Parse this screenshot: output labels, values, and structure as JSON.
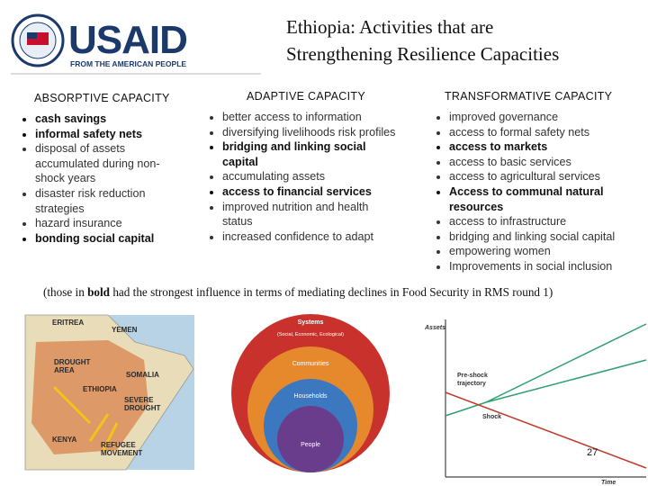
{
  "logo": {
    "name": "USAID",
    "tagline": "FROM THE AMERICAN PEOPLE"
  },
  "title": [
    "Ethiopia:  Activities that are",
    "Strengthening Resilience Capacities"
  ],
  "columns": [
    {
      "heading": "ABSORPTIVE CAPACITY",
      "items": [
        {
          "text": "cash savings",
          "bold": true
        },
        {
          "text": "informal safety nets",
          "bold": true
        },
        {
          "text": "disposal of assets accumulated during non-shock years",
          "bold": false
        },
        {
          "text": "disaster risk reduction strategies",
          "bold": false
        },
        {
          "text": "hazard insurance",
          "bold": false
        },
        {
          "text": "bonding social capital",
          "bold": true
        }
      ]
    },
    {
      "heading": "ADAPTIVE CAPACITY",
      "items": [
        {
          "text": "better access to information",
          "bold": false
        },
        {
          "text": "diversifying livelihoods risk profiles",
          "bold": false
        },
        {
          "text": "bridging and linking social capital",
          "bold": true
        },
        {
          "text": "accumulating assets",
          "bold": false
        },
        {
          "text": "access to financial services",
          "bold": true
        },
        {
          "text": "improved nutrition and health status",
          "bold": false
        },
        {
          "text": "increased confidence to adapt",
          "bold": false
        }
      ]
    },
    {
      "heading": "TRANSFORMATIVE CAPACITY",
      "items": [
        {
          "text": "improved governance",
          "bold": false
        },
        {
          "text": "access to formal safety nets",
          "bold": false
        },
        {
          "text": "access to markets",
          "bold": true
        },
        {
          "text": "access to basic services",
          "bold": false
        },
        {
          "text": "access to agricultural services",
          "bold": false
        },
        {
          "text": "Access to communal natural resources",
          "bold": true
        },
        {
          "text": "access to infrastructure",
          "bold": false
        },
        {
          "text": "bridging and linking social capital",
          "bold": false
        },
        {
          "text": "empowering women",
          "bold": false
        },
        {
          "text": "Improvements in social inclusion",
          "bold": false
        }
      ]
    }
  ],
  "note": [
    "(those in ",
    "bold",
    " had the strongest influence in terms of mediating declines in Food Security in RMS round 1)"
  ],
  "map": {
    "labels": [
      "ERITREA",
      "YEMEN",
      "DROUGHT AREA",
      "SOMALIA",
      "ETHIOPIA",
      "SEVERE DROUGHT",
      "KENYA",
      "REFUGEE MOVEMENT"
    ]
  },
  "diagram": {
    "levels": [
      "Systems",
      "Communities",
      "Households",
      "People"
    ],
    "systems_detail": "(Social, Economic, Ecological)"
  },
  "graph": {
    "y_label": "Assets",
    "x_label": "Time",
    "trajectory": "Pre-shock trajectory",
    "shock": "Shock"
  },
  "page_number": "27"
}
